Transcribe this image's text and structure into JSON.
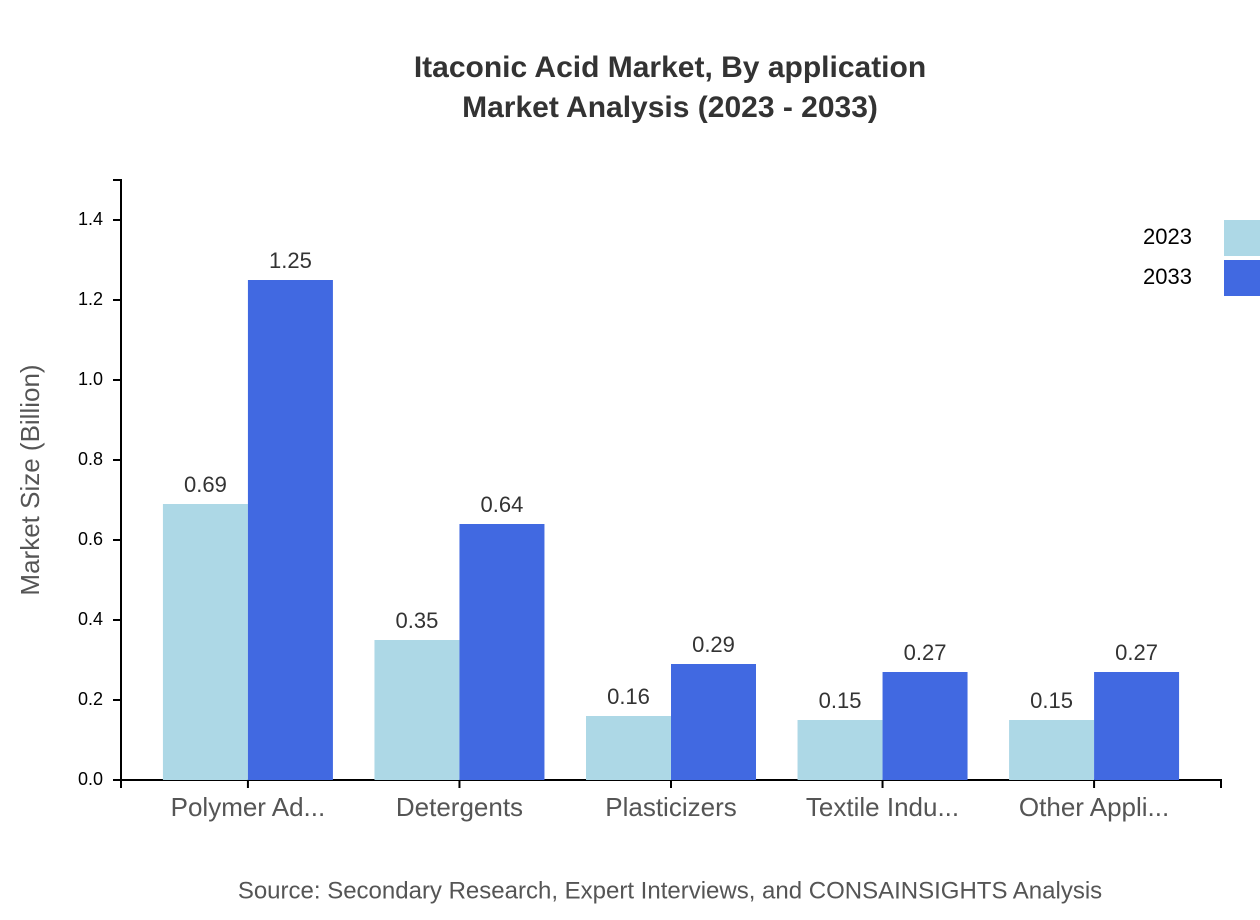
{
  "chart_data": {
    "type": "bar",
    "title": [
      "Itaconic Acid Market, By application",
      "Market Analysis (2023 - 2033)"
    ],
    "y_label": "Market Size (Billion)",
    "source": "Source: Secondary Research, Expert Interviews, and CONSAINSIGHTS Analysis",
    "categories": [
      "Polymer Ad...",
      "Detergents",
      "Plasticizers",
      "Textile Indu...",
      "Other Appli..."
    ],
    "series": [
      {
        "name": "2023",
        "color": "#add8e6",
        "values": [
          0.69,
          0.35,
          0.16,
          0.15,
          0.15
        ]
      },
      {
        "name": "2033",
        "color": "#4169e1",
        "values": [
          1.25,
          0.64,
          0.29,
          0.27,
          0.27
        ]
      }
    ],
    "ylim": [
      0,
      1.5
    ],
    "yticks": [
      {
        "value": 0,
        "label": "0.0"
      },
      0.2,
      0.4,
      0.6,
      0.8,
      {
        "value": 1,
        "label": "1.0"
      },
      1.2,
      1.4
    ],
    "legend_position": "top-right"
  }
}
